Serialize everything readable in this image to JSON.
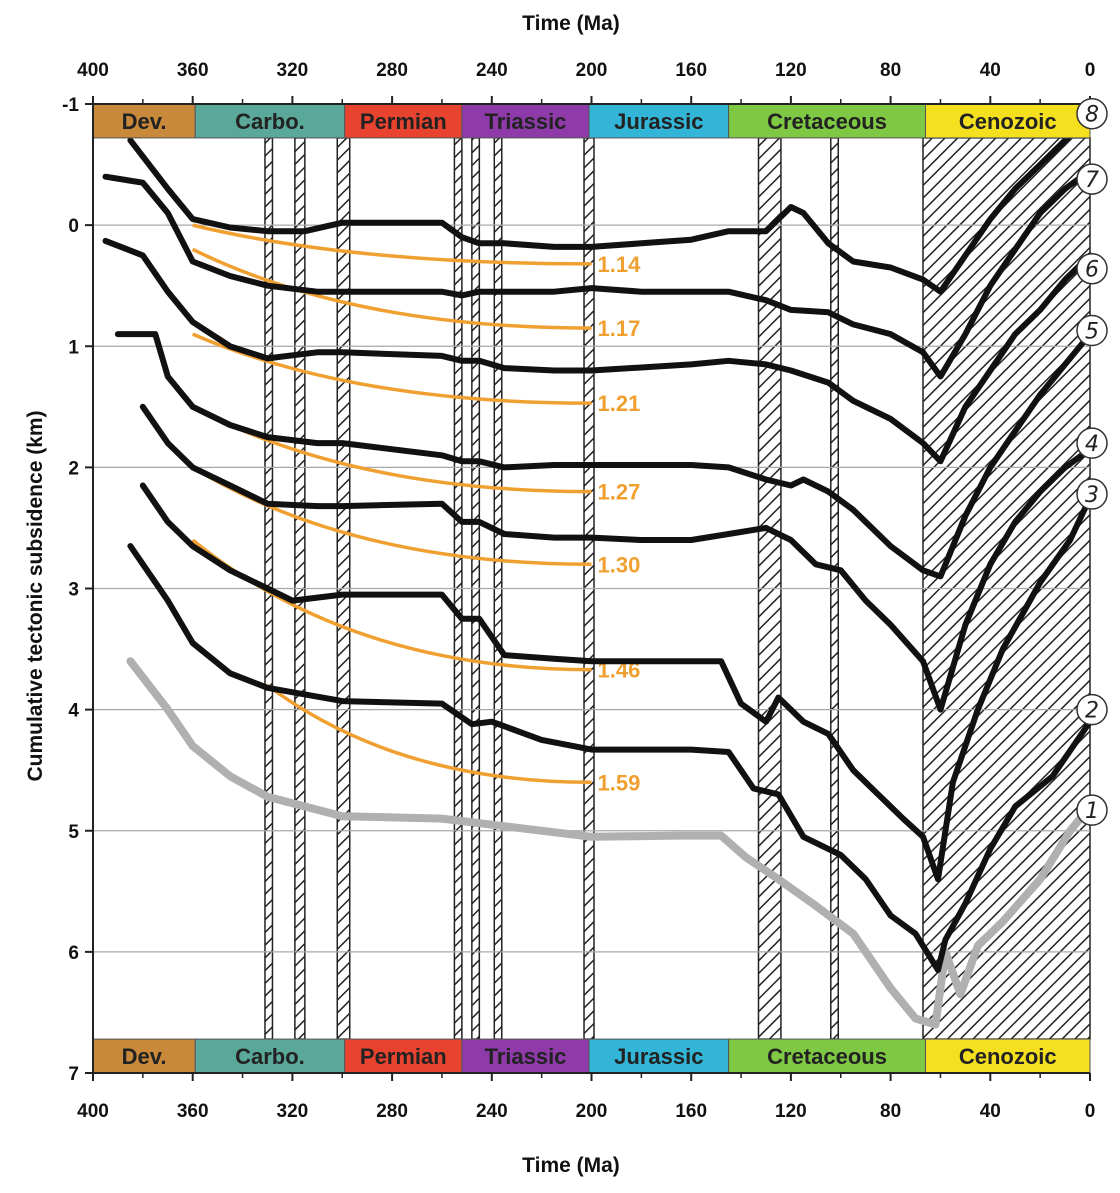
{
  "chart_data": {
    "type": "line",
    "title": "",
    "xlabel_top": "Time (Ma)",
    "xlabel_bottom": "Time (Ma)",
    "ylabel": "Cumulative tectonic subsidence (km)",
    "xlim": [
      400,
      0
    ],
    "ylim": [
      -1,
      7
    ],
    "y_inverted": true,
    "x_ticks": [
      400,
      360,
      320,
      280,
      240,
      200,
      160,
      120,
      80,
      40,
      0
    ],
    "y_ticks": [
      -1,
      0,
      1,
      2,
      3,
      4,
      5,
      6,
      7
    ],
    "grid": "horizontal",
    "periods": [
      {
        "name": "Dev.",
        "start": 400,
        "end": 359,
        "color": "#c8893a"
      },
      {
        "name": "Carbo.",
        "start": 359,
        "end": 299,
        "color": "#5aa89a"
      },
      {
        "name": "Permian",
        "start": 299,
        "end": 252,
        "color": "#e8432e"
      },
      {
        "name": "Triassic",
        "start": 252,
        "end": 201,
        "color": "#8e3aa8"
      },
      {
        "name": "Jurassic",
        "start": 201,
        "end": 145,
        "color": "#33b5d8"
      },
      {
        "name": "Cretaceous",
        "start": 145,
        "end": 66,
        "color": "#7ec843"
      },
      {
        "name": "Cenozoic",
        "start": 66,
        "end": 0,
        "color": "#f5e020"
      }
    ],
    "hatched_intervals": [
      [
        331,
        328
      ],
      [
        319,
        315
      ],
      [
        302,
        297
      ],
      [
        255,
        252
      ],
      [
        248,
        245
      ],
      [
        239,
        236
      ],
      [
        203,
        199
      ],
      [
        133,
        124
      ],
      [
        104,
        101
      ],
      [
        67,
        0
      ]
    ],
    "series": [
      {
        "name": "1",
        "color": "#b0b0b0",
        "x": [
          385,
          370,
          360,
          345,
          330,
          300,
          260,
          200,
          165,
          148,
          138,
          125,
          110,
          95,
          80,
          70,
          62,
          58,
          52,
          45,
          35,
          20,
          8,
          0
        ],
        "y": [
          3.6,
          4.0,
          4.3,
          4.55,
          4.72,
          4.88,
          4.9,
          5.05,
          5.04,
          5.04,
          5.22,
          5.4,
          5.62,
          5.85,
          6.3,
          6.55,
          6.6,
          6.0,
          6.35,
          5.95,
          5.75,
          5.4,
          5.0,
          4.8
        ]
      },
      {
        "name": "2",
        "color": "#111111",
        "x": [
          385,
          370,
          360,
          345,
          330,
          300,
          260,
          248,
          240,
          220,
          200,
          160,
          145,
          135,
          125,
          115,
          105,
          100,
          90,
          80,
          70,
          61,
          58,
          50,
          40,
          30,
          15,
          5,
          0
        ],
        "y": [
          2.65,
          3.1,
          3.45,
          3.7,
          3.82,
          3.93,
          3.95,
          4.12,
          4.1,
          4.25,
          4.33,
          4.33,
          4.35,
          4.65,
          4.7,
          5.05,
          5.15,
          5.2,
          5.4,
          5.7,
          5.85,
          6.15,
          5.9,
          5.6,
          5.15,
          4.8,
          4.55,
          4.25,
          4.1
        ]
      },
      {
        "name": "3",
        "color": "#111111",
        "x": [
          380,
          370,
          360,
          345,
          330,
          320,
          300,
          260,
          252,
          245,
          235,
          215,
          200,
          160,
          148,
          140,
          130,
          125,
          115,
          105,
          95,
          85,
          75,
          67,
          61,
          55,
          45,
          35,
          20,
          8,
          0
        ],
        "y": [
          2.15,
          2.45,
          2.65,
          2.85,
          3.0,
          3.1,
          3.05,
          3.05,
          3.25,
          3.25,
          3.55,
          3.58,
          3.6,
          3.6,
          3.6,
          3.95,
          4.1,
          3.9,
          4.1,
          4.2,
          4.5,
          4.7,
          4.9,
          5.05,
          5.4,
          4.6,
          4.0,
          3.5,
          2.95,
          2.6,
          2.25
        ]
      },
      {
        "name": "4",
        "color": "#111111",
        "x": [
          380,
          370,
          360,
          345,
          330,
          310,
          300,
          260,
          252,
          245,
          235,
          215,
          200,
          180,
          160,
          145,
          130,
          120,
          110,
          100,
          90,
          80,
          67,
          60,
          50,
          40,
          30,
          20,
          10,
          0
        ],
        "y": [
          1.5,
          1.8,
          2.0,
          2.15,
          2.3,
          2.32,
          2.32,
          2.3,
          2.45,
          2.45,
          2.55,
          2.58,
          2.58,
          2.6,
          2.6,
          2.55,
          2.5,
          2.6,
          2.8,
          2.85,
          3.1,
          3.3,
          3.6,
          4.0,
          3.3,
          2.8,
          2.45,
          2.2,
          2.0,
          1.85
        ]
      },
      {
        "name": "5",
        "color": "#111111",
        "x": [
          390,
          375,
          370,
          360,
          345,
          330,
          310,
          300,
          260,
          252,
          245,
          235,
          215,
          200,
          160,
          145,
          130,
          120,
          115,
          105,
          95,
          80,
          67,
          60,
          50,
          40,
          30,
          20,
          10,
          0
        ],
        "y": [
          0.9,
          0.9,
          1.25,
          1.5,
          1.65,
          1.75,
          1.8,
          1.8,
          1.9,
          1.95,
          1.95,
          2.0,
          1.98,
          1.98,
          1.98,
          2.0,
          2.1,
          2.15,
          2.1,
          2.2,
          2.35,
          2.65,
          2.85,
          2.9,
          2.4,
          2.0,
          1.7,
          1.4,
          1.15,
          0.9
        ]
      },
      {
        "name": "6",
        "color": "#111111",
        "x": [
          395,
          380,
          370,
          360,
          345,
          330,
          310,
          300,
          260,
          252,
          245,
          235,
          215,
          200,
          160,
          145,
          130,
          120,
          105,
          95,
          80,
          67,
          60,
          50,
          40,
          30,
          20,
          10,
          0
        ],
        "y": [
          0.13,
          0.25,
          0.55,
          0.8,
          1.0,
          1.1,
          1.05,
          1.05,
          1.08,
          1.12,
          1.12,
          1.18,
          1.2,
          1.2,
          1.15,
          1.12,
          1.15,
          1.2,
          1.3,
          1.45,
          1.6,
          1.8,
          1.95,
          1.5,
          1.2,
          0.9,
          0.7,
          0.45,
          0.25
        ]
      },
      {
        "name": "7",
        "color": "#111111",
        "x": [
          395,
          380,
          370,
          360,
          345,
          330,
          310,
          300,
          260,
          252,
          245,
          235,
          215,
          200,
          180,
          160,
          145,
          130,
          120,
          105,
          95,
          80,
          67,
          60,
          50,
          40,
          30,
          20,
          10,
          0
        ],
        "y": [
          -0.4,
          -0.35,
          -0.1,
          0.3,
          0.42,
          0.5,
          0.55,
          0.55,
          0.55,
          0.58,
          0.55,
          0.55,
          0.55,
          0.52,
          0.55,
          0.55,
          0.55,
          0.62,
          0.7,
          0.72,
          0.82,
          0.9,
          1.05,
          1.25,
          0.9,
          0.5,
          0.2,
          -0.1,
          -0.3,
          -0.45
        ]
      },
      {
        "name": "8",
        "color": "#111111",
        "x": [
          385,
          370,
          360,
          345,
          330,
          315,
          300,
          260,
          252,
          245,
          235,
          215,
          200,
          180,
          160,
          145,
          130,
          120,
          115,
          105,
          95,
          80,
          67,
          60,
          50,
          40,
          30,
          20,
          10,
          0
        ],
        "y": [
          -0.7,
          -0.3,
          -0.05,
          0.02,
          0.05,
          0.05,
          -0.02,
          -0.02,
          0.1,
          0.15,
          0.15,
          0.18,
          0.18,
          0.15,
          0.12,
          0.05,
          0.05,
          -0.15,
          -0.1,
          0.15,
          0.3,
          0.35,
          0.45,
          0.55,
          0.25,
          -0.05,
          -0.3,
          -0.5,
          -0.7,
          -0.9
        ]
      }
    ],
    "annotation_curves": [
      {
        "label": "1.14",
        "start_x": 360,
        "start_y": 0.0,
        "end_x": 200,
        "end_y": 0.32
      },
      {
        "label": "1.17",
        "start_x": 360,
        "start_y": 0.2,
        "end_x": 200,
        "end_y": 0.85
      },
      {
        "label": "1.21",
        "start_x": 360,
        "start_y": 0.9,
        "end_x": 200,
        "end_y": 1.47
      },
      {
        "label": "1.27",
        "start_x": 360,
        "start_y": 1.5,
        "end_x": 200,
        "end_y": 2.2
      },
      {
        "label": "1.30",
        "start_x": 360,
        "start_y": 2.0,
        "end_x": 200,
        "end_y": 2.8
      },
      {
        "label": "1.46",
        "start_x": 360,
        "start_y": 2.6,
        "end_x": 200,
        "end_y": 3.67
      },
      {
        "label": "1.59",
        "start_x": 330,
        "start_y": 3.8,
        "end_x": 200,
        "end_y": 4.6
      }
    ],
    "well_labels": [
      {
        "label": "1",
        "y": 4.83
      },
      {
        "label": "2",
        "y": 4.0
      },
      {
        "label": "3",
        "y": 2.22
      },
      {
        "label": "4",
        "y": 1.8
      },
      {
        "label": "5",
        "y": 0.87
      },
      {
        "label": "6",
        "y": 0.36
      },
      {
        "label": "7",
        "y": -0.38
      },
      {
        "label": "8",
        "y": -0.92
      }
    ]
  }
}
